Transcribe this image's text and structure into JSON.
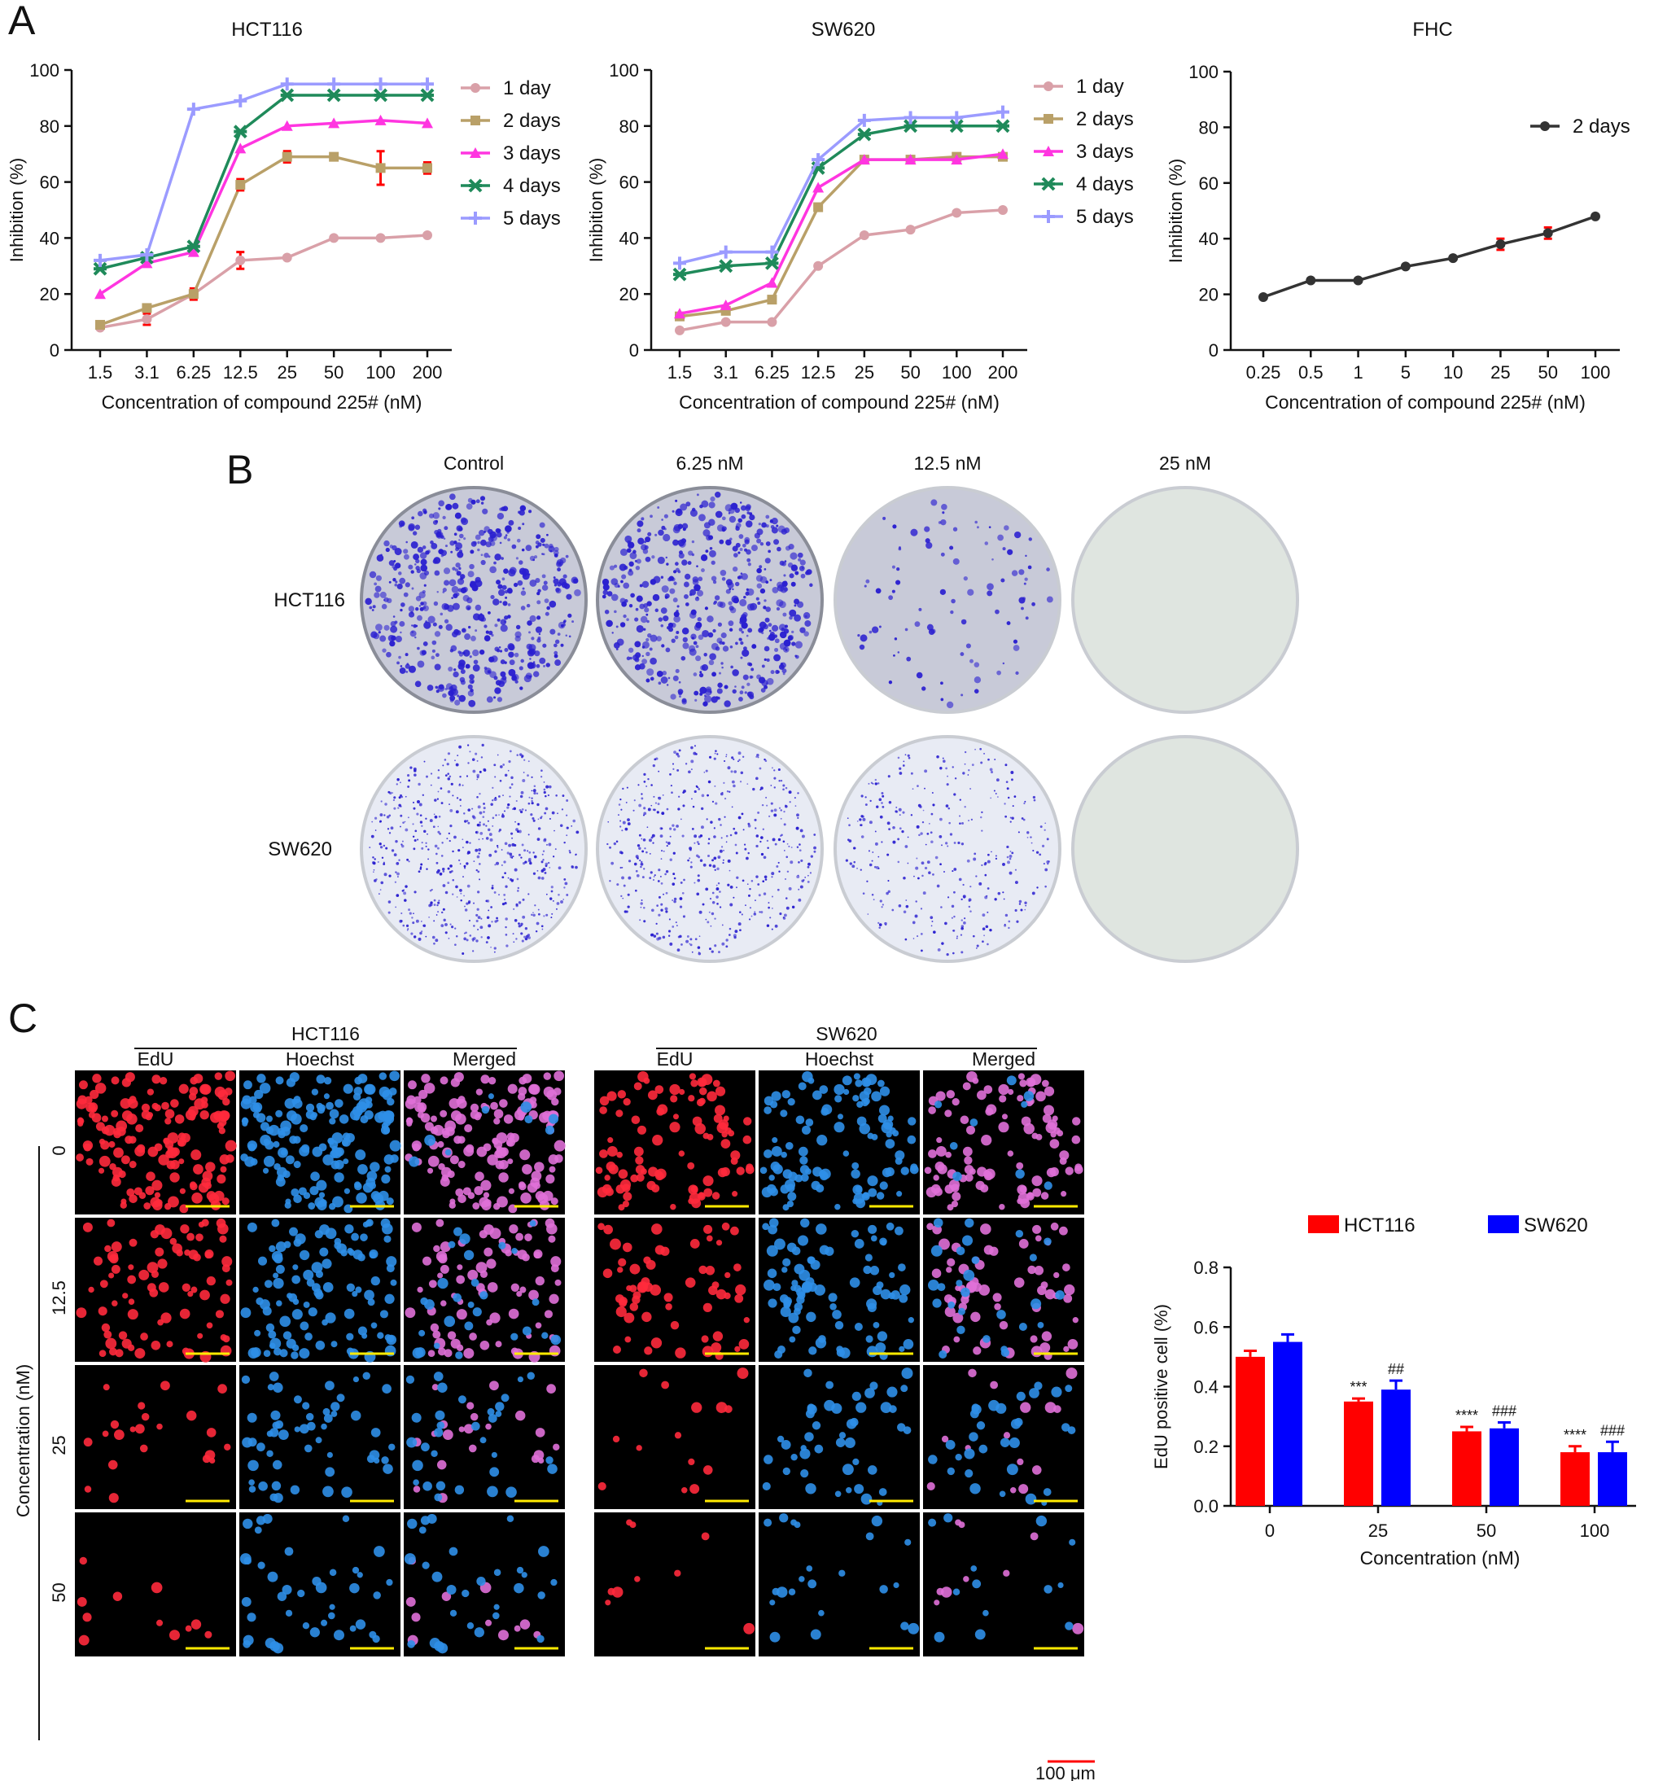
{
  "panels": {
    "A": {
      "letter": "A"
    },
    "B": {
      "letter": "B"
    },
    "C": {
      "letter": "C"
    }
  },
  "chart_data": [
    {
      "id": "hct116",
      "type": "line",
      "title": "HCT116",
      "xlabel": "Concentration of compound 225# (nM)",
      "ylabel": "Inhibition (%)",
      "ylim": [
        0,
        100
      ],
      "yticks": [
        0,
        20,
        40,
        60,
        80,
        100
      ],
      "categories": [
        "1.5",
        "3.1",
        "6.25",
        "12.5",
        "25",
        "50",
        "100",
        "200"
      ],
      "legend_position": "right",
      "series": [
        {
          "name": "1 day",
          "color": "#d9a0a8",
          "marker": "circle",
          "values": [
            8,
            11,
            20,
            32,
            33,
            40,
            40,
            41
          ],
          "errors": [
            1,
            2,
            2,
            3,
            1,
            1,
            1,
            1
          ]
        },
        {
          "name": "2 days",
          "color": "#b9a068",
          "marker": "square",
          "values": [
            9,
            15,
            20,
            59,
            69,
            69,
            65,
            65
          ],
          "errors": [
            1,
            1,
            1,
            2,
            2,
            1,
            6,
            2
          ]
        },
        {
          "name": "3 days",
          "color": "#ff35e0",
          "marker": "triangle",
          "values": [
            20,
            31,
            35,
            72,
            80,
            81,
            82,
            81
          ],
          "errors": [
            0.5,
            0.5,
            0.5,
            0.5,
            0.5,
            0.5,
            0.5,
            0.5
          ]
        },
        {
          "name": "4 days",
          "color": "#1f8a5a",
          "marker": "star",
          "values": [
            29,
            33,
            37,
            78,
            91,
            91,
            91,
            91
          ],
          "errors": [
            0.5,
            0.5,
            0.5,
            0.5,
            0.5,
            0.5,
            0.5,
            0.5
          ]
        },
        {
          "name": "5 days",
          "color": "#9b9bff",
          "marker": "plus",
          "values": [
            32,
            34,
            86,
            89,
            95,
            95,
            95,
            95
          ],
          "errors": [
            0.5,
            0.5,
            0.5,
            0.5,
            0.5,
            0.5,
            0.5,
            0.5
          ]
        }
      ]
    },
    {
      "id": "sw620",
      "type": "line",
      "title": "SW620",
      "xlabel": "Concentration of compound 225# (nM)",
      "ylabel": "Inhibition (%)",
      "ylim": [
        0,
        100
      ],
      "yticks": [
        0,
        20,
        40,
        60,
        80,
        100
      ],
      "categories": [
        "1.5",
        "3.1",
        "6.25",
        "12.5",
        "25",
        "50",
        "100",
        "200"
      ],
      "legend_position": "right",
      "series": [
        {
          "name": "1 day",
          "color": "#d9a0a8",
          "marker": "circle",
          "values": [
            7,
            10,
            10,
            30,
            41,
            43,
            49,
            50
          ],
          "errors": [
            0.5,
            0.5,
            0.5,
            0.5,
            0.5,
            0.5,
            0.5,
            0.5
          ]
        },
        {
          "name": "2 days",
          "color": "#b9a068",
          "marker": "square",
          "values": [
            12,
            14,
            18,
            51,
            68,
            68,
            69,
            69
          ],
          "errors": [
            0.5,
            0.5,
            0.5,
            0.5,
            0.5,
            0.5,
            0.5,
            0.5
          ]
        },
        {
          "name": "3 days",
          "color": "#ff35e0",
          "marker": "triangle",
          "values": [
            13,
            16,
            24,
            58,
            68,
            68,
            68,
            70
          ],
          "errors": [
            0.5,
            0.5,
            0.5,
            0.5,
            0.5,
            0.5,
            0.5,
            0.5
          ]
        },
        {
          "name": "4 days",
          "color": "#1f8a5a",
          "marker": "star",
          "values": [
            27,
            30,
            31,
            65,
            77,
            80,
            80,
            80
          ],
          "errors": [
            0.5,
            0.5,
            0.5,
            0.5,
            0.5,
            0.5,
            0.5,
            0.5
          ]
        },
        {
          "name": "5 days",
          "color": "#9b9bff",
          "marker": "plus",
          "values": [
            31,
            35,
            35,
            68,
            82,
            83,
            83,
            85
          ],
          "errors": [
            0.5,
            0.5,
            0.5,
            0.5,
            0.5,
            0.5,
            0.5,
            0.5
          ]
        }
      ]
    },
    {
      "id": "fhc",
      "type": "line",
      "title": "FHC",
      "xlabel": "Concentration of compound 225# (nM)",
      "ylabel": "Inhibition (%)",
      "ylim": [
        0,
        100
      ],
      "yticks": [
        0,
        20,
        40,
        60,
        80,
        100
      ],
      "categories": [
        "0.25",
        "0.5",
        "1",
        "5",
        "10",
        "25",
        "50",
        "100"
      ],
      "legend_position": "top-right",
      "series": [
        {
          "name": "2 days",
          "color": "#333333",
          "marker": "circle",
          "values": [
            19,
            25,
            25,
            30,
            33,
            38,
            42,
            48
          ],
          "errors": [
            0.5,
            0.5,
            0.5,
            0.5,
            0.5,
            2,
            2,
            0.5
          ]
        }
      ]
    },
    {
      "id": "edu",
      "type": "bar",
      "title": "",
      "xlabel": "Concentration (nM)",
      "ylabel": "EdU positive cell (%)",
      "ylim": [
        0,
        0.8
      ],
      "yticks": [
        "0.0",
        "0.2",
        "0.4",
        "0.6",
        "0.8"
      ],
      "categories": [
        "0",
        "25",
        "50",
        "100"
      ],
      "legend_position": "top",
      "series": [
        {
          "name": "HCT116",
          "color": "#ff0000",
          "values": [
            0.5,
            0.35,
            0.25,
            0.18
          ],
          "errors": [
            0.02,
            0.01,
            0.015,
            0.02
          ],
          "annotations": [
            "",
            "***",
            "****",
            "****"
          ]
        },
        {
          "name": "SW620",
          "color": "#0000ff",
          "values": [
            0.55,
            0.39,
            0.26,
            0.18
          ],
          "errors": [
            0.025,
            0.03,
            0.02,
            0.035
          ],
          "annotations": [
            "",
            "##",
            "###",
            "###"
          ]
        }
      ]
    }
  ],
  "colony": {
    "columns": [
      "Control",
      "6.25 nM",
      "12.5 nM",
      "25 nM"
    ],
    "rows": [
      {
        "label": "HCT116",
        "density": [
          1.0,
          1.0,
          0.18,
          0.0
        ],
        "colony_size": "large"
      },
      {
        "label": "SW620",
        "density": [
          0.55,
          0.45,
          0.3,
          0.0
        ],
        "colony_size": "small"
      }
    ],
    "colony_color": "#2a1fd0"
  },
  "microscopy": {
    "groups": [
      {
        "title": "HCT116",
        "channels": [
          "EdU",
          "Hoechst",
          "Merged"
        ]
      },
      {
        "title": "SW620",
        "channels": [
          "EdU",
          "Hoechst",
          "Merged"
        ]
      }
    ],
    "row_axis_label": "Concentration (nM)",
    "row_labels": [
      "0",
      "12.5",
      "25",
      "50"
    ],
    "scale_bar_label": "100 μm",
    "edu_color": "#ff2a3c",
    "hoechst_color": "#2f8fe8",
    "merged_color": "#e070d8",
    "scale_bar_color": "#ffea00",
    "density": {
      "hct116": [
        [
          0.85,
          0.9
        ],
        [
          0.45,
          0.6
        ],
        [
          0.12,
          0.3
        ],
        [
          0.06,
          0.22
        ]
      ],
      "sw620": [
        [
          0.55,
          0.6
        ],
        [
          0.35,
          0.5
        ],
        [
          0.08,
          0.25
        ],
        [
          0.05,
          0.12
        ]
      ]
    }
  }
}
